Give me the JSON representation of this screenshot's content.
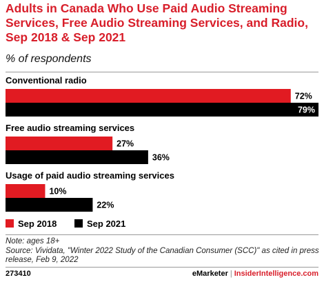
{
  "chart_data": {
    "type": "bar",
    "orientation": "horizontal",
    "title": "Adults in Canada Who Use Paid Audio Streaming Services, Free Audio Streaming Services, and Radio, Sep 2018 & Sep 2021",
    "subtitle": "% of respondents",
    "categories": [
      "Conventional radio",
      "Free audio streaming services",
      "Usage of paid audio streaming services"
    ],
    "series": [
      {
        "name": "Sep 2018",
        "color": "#e11b22",
        "values": [
          72,
          27,
          10
        ],
        "labels": [
          "72%",
          "27%",
          "10%"
        ]
      },
      {
        "name": "Sep 2021",
        "color": "#000000",
        "values": [
          79,
          36,
          22
        ],
        "labels": [
          "79%",
          "36%",
          "22%"
        ]
      }
    ],
    "xlim": [
      0,
      79
    ],
    "grid": false,
    "legend": "bottom-left"
  },
  "notes": {
    "note": "Note: ages 18+",
    "source": "Source: Vividata, \"Winter 2022 Study of the Canadian Consumer (SCC)\" as cited in press release, Feb 9, 2022"
  },
  "footer": {
    "id": "273410",
    "brand1": "eMarketer",
    "separator": "|",
    "brand2": "InsiderIntelligence.com"
  }
}
